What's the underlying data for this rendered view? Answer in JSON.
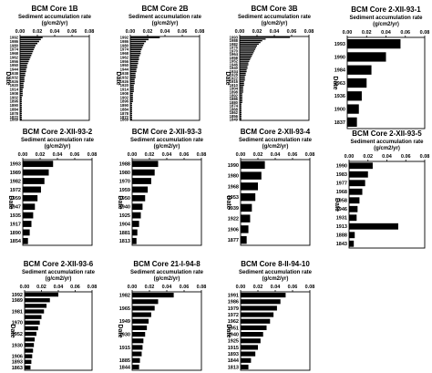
{
  "chart_data": [
    {
      "type": "bar",
      "title": "BCM Core 1B",
      "xlabel": "Sediment accumulation rate",
      "xunits": "(g/cm2/yr)",
      "ylabel": "Date",
      "xlim": [
        0,
        0.08
      ],
      "xticks": [
        "0.00",
        "0.02",
        "0.04",
        "0.06",
        "0.08"
      ],
      "categories": [
        "1992",
        "1989",
        "1986",
        "1983",
        "1980",
        "1977",
        "1974",
        "1971",
        "1968",
        "1965",
        "1962",
        "1959",
        "1956",
        "1953",
        "1950",
        "1947",
        "1944",
        "1941",
        "1938",
        "1935",
        "1932",
        "1929",
        "1926",
        "1923",
        "1920",
        "1917",
        "1914",
        "1911",
        "1908",
        "1905",
        "1902",
        "1899",
        "1896",
        "1893",
        "1890",
        "1887",
        "1884",
        "1881",
        "1878",
        "1875",
        "1872",
        "1869"
      ],
      "ytick_labels": [
        "1992",
        "1986",
        "1980",
        "1974",
        "1968",
        "1962",
        "1956",
        "1950",
        "1944",
        "1938",
        "1932",
        "1926",
        "1920",
        "1914",
        "1908",
        "1902",
        "1896",
        "1890",
        "1884",
        "1878",
        "1872",
        "1869"
      ],
      "values": [
        0.026,
        0.024,
        0.022,
        0.02,
        0.018,
        0.017,
        0.016,
        0.015,
        0.014,
        0.013,
        0.012,
        0.011,
        0.01,
        0.009,
        0.008,
        0.008,
        0.007,
        0.007,
        0.006,
        0.006,
        0.005,
        0.005,
        0.005,
        0.004,
        0.004,
        0.004,
        0.003,
        0.003,
        0.003,
        0.003,
        0.002,
        0.002,
        0.002,
        0.002,
        0.002,
        0.002,
        0.002,
        0.002,
        0.002,
        0.002,
        0.002,
        0.002
      ]
    },
    {
      "type": "bar",
      "title": "BCM Core 2B",
      "xlabel": "Sediment accumulation rate",
      "xunits": "(g/cm2/yr)",
      "ylabel": "Date",
      "xlim": [
        0,
        0.08
      ],
      "xticks": [
        "0.00",
        "0.02",
        "0.04",
        "0.06",
        "0.08"
      ],
      "categories": [
        "1992",
        "1989",
        "1986",
        "1983",
        "1980",
        "1977",
        "1974",
        "1971",
        "1968",
        "1965",
        "1962",
        "1959",
        "1956",
        "1953",
        "1950",
        "1947",
        "1944",
        "1941",
        "1938",
        "1935",
        "1932",
        "1929",
        "1926",
        "1923",
        "1920",
        "1917",
        "1914",
        "1911",
        "1908",
        "1905",
        "1902",
        "1899",
        "1896",
        "1893",
        "1890",
        "1887",
        "1884",
        "1881",
        "1878",
        "1875",
        "1872",
        "1869"
      ],
      "ytick_labels": [
        "1992",
        "1986",
        "1980",
        "1974",
        "1968",
        "1962",
        "1956",
        "1950",
        "1944",
        "1938",
        "1932",
        "1926",
        "1920",
        "1914",
        "1908",
        "1902",
        "1896",
        "1890",
        "1884",
        "1878",
        "1872",
        "1869"
      ],
      "values": [
        0.034,
        0.021,
        0.018,
        0.016,
        0.015,
        0.014,
        0.013,
        0.012,
        0.012,
        0.011,
        0.01,
        0.01,
        0.009,
        0.009,
        0.008,
        0.008,
        0.007,
        0.007,
        0.006,
        0.006,
        0.006,
        0.005,
        0.005,
        0.005,
        0.004,
        0.004,
        0.004,
        0.004,
        0.003,
        0.003,
        0.003,
        0.003,
        0.003,
        0.002,
        0.002,
        0.002,
        0.002,
        0.002,
        0.002,
        0.002,
        0.002,
        0.002
      ]
    },
    {
      "type": "bar",
      "title": "BCM Core 3B",
      "xlabel": "Sediment accumulation rate",
      "xunits": "(g/cm2/yr)",
      "ylabel": "Date",
      "xlim": [
        0,
        0.08
      ],
      "xticks": [
        "0.00",
        "0.02",
        "0.04",
        "0.06",
        "0.08"
      ],
      "categories": [
        "1993",
        "1990",
        "1988",
        "1985",
        "1982",
        "1979",
        "1976",
        "1973",
        "1970",
        "1967",
        "1964",
        "1961",
        "1958",
        "1955",
        "1952",
        "1949",
        "1946",
        "1943",
        "1940",
        "1937",
        "1934",
        "1931",
        "1928",
        "1925",
        "1922",
        "1919",
        "1916",
        "1913",
        "1910",
        "1907",
        "1904",
        "1901",
        "1898",
        "1895",
        "1892",
        "1889",
        "1886",
        "1883",
        "1880",
        "1877",
        "1874",
        "1871",
        "1868",
        "1865",
        "1862",
        "1859",
        "1856",
        "1853",
        "1849"
      ],
      "ytick_labels": [
        "1993",
        "1988",
        "1982",
        "1976",
        "1970",
        "1964",
        "1958",
        "1952",
        "1946",
        "1940",
        "1934",
        "1928",
        "1922",
        "1916",
        "1910",
        "1904",
        "1898",
        "1892",
        "1886",
        "1880",
        "1874",
        "1868",
        "1862",
        "1856",
        "1849"
      ],
      "values": [
        0.058,
        0.03,
        0.026,
        0.024,
        0.022,
        0.02,
        0.019,
        0.018,
        0.017,
        0.016,
        0.015,
        0.014,
        0.013,
        0.012,
        0.011,
        0.01,
        0.01,
        0.009,
        0.009,
        0.008,
        0.008,
        0.007,
        0.007,
        0.006,
        0.006,
        0.006,
        0.005,
        0.005,
        0.005,
        0.004,
        0.004,
        0.004,
        0.004,
        0.003,
        0.003,
        0.003,
        0.003,
        0.003,
        0.003,
        0.002,
        0.002,
        0.002,
        0.002,
        0.002,
        0.002,
        0.002,
        0.002,
        0.002,
        0.002
      ]
    },
    {
      "type": "bar",
      "title": "BCM Core 2-XII-93-1",
      "xlabel": "Sediment accumulation rate",
      "xunits": "(g/cm2/yr)",
      "ylabel": "Date",
      "xlim": [
        0,
        0.08
      ],
      "xticks": [
        "0.00",
        "0.02",
        "0.04",
        "0.06",
        "0.08"
      ],
      "categories": [
        "1993",
        "1990",
        "1984",
        "1963",
        "1936",
        "1900",
        "1837"
      ],
      "ytick_labels": [
        "1993",
        "1990",
        "1984",
        "1963",
        "1936",
        "1900",
        "1837"
      ],
      "values": [
        0.055,
        0.04,
        0.025,
        0.02,
        0.015,
        0.012,
        0.01
      ]
    },
    {
      "type": "bar",
      "title": "BCM Core 2-XII-93-2",
      "xlabel": "Sediment accumulation rate",
      "xunits": "(g/cm2/yr)",
      "ylabel": "Date",
      "xlim": [
        0,
        0.08
      ],
      "xticks": [
        "0.00",
        "0.02",
        "0.04",
        "0.06",
        "0.08"
      ],
      "categories": [
        "1993",
        "1989",
        "1982",
        "1972",
        "1959",
        "1947",
        "1935",
        "1917",
        "1890",
        "1854"
      ],
      "ytick_labels": [
        "1993",
        "1989",
        "1982",
        "1972",
        "1959",
        "1947",
        "1935",
        "1917",
        "1890",
        "1854"
      ],
      "values": [
        0.035,
        0.03,
        0.025,
        0.021,
        0.017,
        0.014,
        0.012,
        0.01,
        0.008,
        0.006
      ]
    },
    {
      "type": "bar",
      "title": "BCM Core 2-XII-93-3",
      "xlabel": "Sediment accumulation rate",
      "xunits": "(g/cm2/yr)",
      "ylabel": "Date",
      "xlim": [
        0,
        0.08
      ],
      "xticks": [
        "0.00",
        "0.02",
        "0.04",
        "0.06",
        "0.08"
      ],
      "categories": [
        "1988",
        "1980",
        "1970",
        "1959",
        "1950",
        "1940",
        "1925",
        "1904",
        "1881",
        "1813"
      ],
      "ytick_labels": [
        "1988",
        "1980",
        "1970",
        "1959",
        "1950",
        "1940",
        "1925",
        "1904",
        "1881",
        "1813"
      ],
      "values": [
        0.03,
        0.026,
        0.022,
        0.018,
        0.015,
        0.012,
        0.01,
        0.008,
        0.006,
        0.005
      ]
    },
    {
      "type": "bar",
      "title": "BCM Core 2-XII-93-4",
      "xlabel": "Sediment accumulation rate",
      "xunits": "(g/cm2/yr)",
      "ylabel": "Date",
      "xlim": [
        0,
        0.08
      ],
      "xticks": [
        "0.00",
        "0.02",
        "0.04",
        "0.06",
        "0.08"
      ],
      "categories": [
        "1990",
        "1980",
        "1968",
        "1953",
        "1939",
        "1922",
        "1906",
        "1877"
      ],
      "ytick_labels": [
        "1990",
        "1980",
        "1968",
        "1953",
        "1939",
        "1922",
        "1906",
        "1877"
      ],
      "values": [
        0.028,
        0.024,
        0.02,
        0.017,
        0.013,
        0.011,
        0.009,
        0.007
      ]
    },
    {
      "type": "bar",
      "title": "BCM Core 2-XII-93-5",
      "xlabel": "Sediment accumulation rate",
      "xunits": "(g/cm2/yr)",
      "ylabel": "Date",
      "xlim": [
        0,
        0.08
      ],
      "xticks": [
        "0.00",
        "0.02",
        "0.04",
        "0.06",
        "0.08"
      ],
      "categories": [
        "1990",
        "1983",
        "1977",
        "1968",
        "1958",
        "1946",
        "1931",
        "1913",
        "1888",
        "1843"
      ],
      "ytick_labels": [
        "1990",
        "1983",
        "1977",
        "1968",
        "1958",
        "1946",
        "1931",
        "1913",
        "1888",
        "1843"
      ],
      "values": [
        0.025,
        0.02,
        0.017,
        0.014,
        0.011,
        0.009,
        0.008,
        0.052,
        0.006,
        0.005
      ]
    },
    {
      "type": "bar",
      "title": "BCM Core 2-XII-93-6",
      "xlabel": "Sediment accumulation rate",
      "xunits": "(g/cm2/yr)",
      "ylabel": "Date",
      "xlim": [
        0,
        0.08
      ],
      "xticks": [
        "0.00",
        "0.02",
        "0.04",
        "0.06",
        "0.08"
      ],
      "categories": [
        "1992",
        "1989",
        "1985",
        "1981",
        "1976",
        "1970",
        "1961",
        "1952",
        "1941",
        "1930",
        "1918",
        "1906",
        "1893",
        "1863"
      ],
      "ytick_labels": [
        "1992",
        "1989",
        "1981",
        "1970",
        "1952",
        "1930",
        "1906",
        "1893",
        "1863"
      ],
      "values": [
        0.04,
        0.03,
        0.026,
        0.023,
        0.02,
        0.018,
        0.016,
        0.014,
        0.012,
        0.011,
        0.01,
        0.009,
        0.008,
        0.007
      ]
    },
    {
      "type": "bar",
      "title": "BCM Core 21-I-94-8",
      "xlabel": "Sediment accumulation rate",
      "xunits": "(g/cm2/yr)",
      "ylabel": "Date",
      "xlim": [
        0,
        0.08
      ],
      "xticks": [
        "0.00",
        "0.02",
        "0.04",
        "0.06",
        "0.08"
      ],
      "categories": [
        "1982",
        "1975",
        "1965",
        "1957",
        "1949",
        "1940",
        "1930",
        "1923",
        "1915",
        "1904",
        "1885",
        "1844"
      ],
      "ytick_labels": [
        "1982",
        "1965",
        "1949",
        "1930",
        "1915",
        "1885",
        "1844"
      ],
      "values": [
        0.048,
        0.03,
        0.026,
        0.022,
        0.019,
        0.017,
        0.015,
        0.013,
        0.012,
        0.011,
        0.009,
        0.008
      ]
    },
    {
      "type": "bar",
      "title": "BCM Core 8-II-94-10",
      "xlabel": "Sediment accumulation rate",
      "xunits": "(g/cm2/yr)",
      "ylabel": "Date",
      "xlim": [
        0,
        0.08
      ],
      "xticks": [
        "0.00",
        "0.02",
        "0.04",
        "0.06",
        "0.08"
      ],
      "categories": [
        "1991",
        "1986",
        "1979",
        "1972",
        "1962",
        "1951",
        "1940",
        "1925",
        "1915",
        "1893",
        "1844",
        "1813"
      ],
      "ytick_labels": [
        "1991",
        "1986",
        "1979",
        "1972",
        "1962",
        "1951",
        "1940",
        "1925",
        "1915",
        "1893",
        "1844",
        "1813"
      ],
      "values": [
        0.052,
        0.046,
        0.042,
        0.038,
        0.034,
        0.03,
        0.026,
        0.023,
        0.02,
        0.017,
        0.012,
        0.009
      ]
    }
  ]
}
